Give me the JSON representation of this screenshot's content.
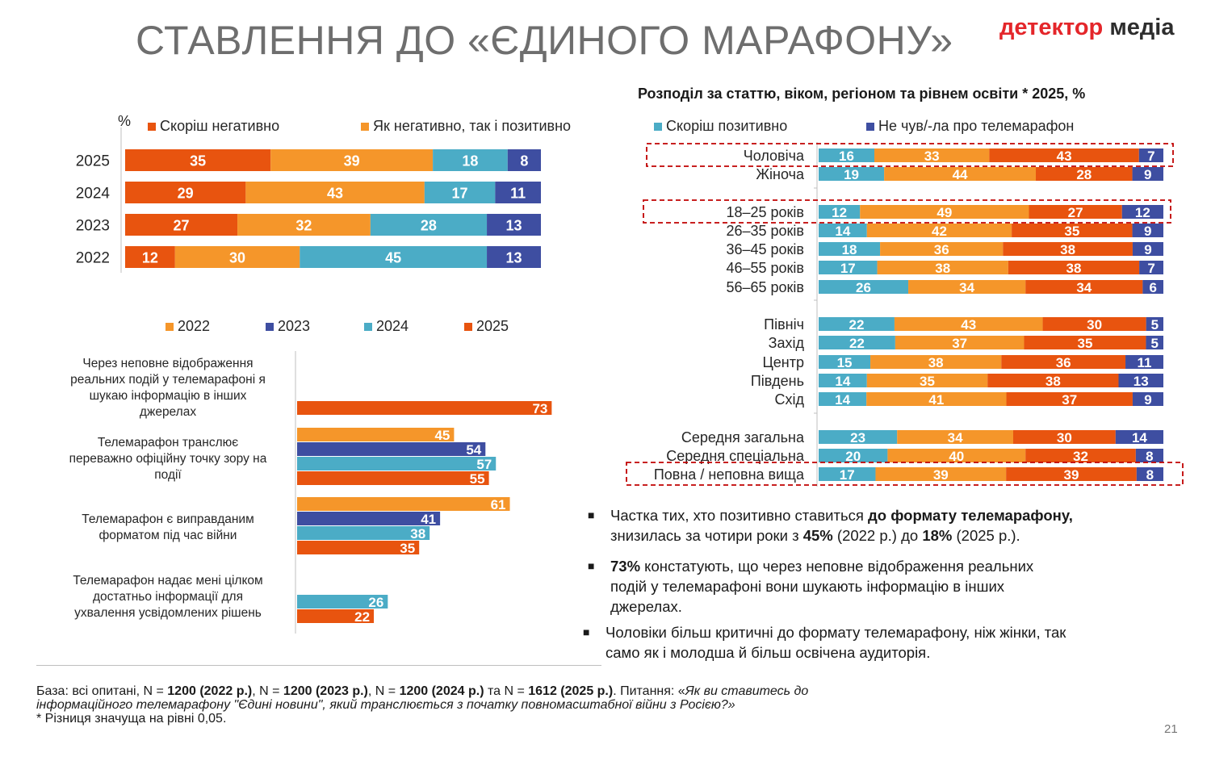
{
  "header": {
    "title": "СТАВЛЕННЯ ДО «ЄДИНОГО МАРАФОНУ»",
    "logo_part1": "детектор",
    "logo_part2": "медіа"
  },
  "colors": {
    "negative": "#e8540f",
    "mixed": "#f5962a",
    "positive": "#4bacc6",
    "not_heard": "#3e4ea1",
    "y2022": "#f5962a",
    "y2023": "#3e4ea1",
    "y2024": "#4bacc6",
    "y2025": "#e8540f",
    "highlight": "#c00000"
  },
  "legend": {
    "percent": "%",
    "negative": "Скоріш негативно",
    "mixed": "Як негативно, так і позитивно",
    "positive": "Скоріш позитивно",
    "not_heard": "Не чув/-ла про телемарафон"
  },
  "right_title": "Розподіл за статтю, віком, регіоном та рівнем освіти * 2025, %",
  "chart_data": [
    {
      "type": "bar",
      "orientation": "horizontal",
      "stacked": true,
      "categories": [
        "2025",
        "2024",
        "2023",
        "2022"
      ],
      "series": [
        {
          "name": "Скоріш негативно",
          "values": [
            35,
            29,
            27,
            12
          ]
        },
        {
          "name": "Як негативно, так і позитивно",
          "values": [
            39,
            43,
            32,
            30
          ]
        },
        {
          "name": "Скоріш позитивно",
          "values": [
            18,
            17,
            28,
            45
          ]
        },
        {
          "name": "Не чув/-ла про телемарафон",
          "values": [
            8,
            11,
            13,
            13
          ]
        }
      ],
      "legend": "top",
      "xlim": [
        0,
        100
      ]
    },
    {
      "type": "bar",
      "orientation": "horizontal",
      "grouped": true,
      "categories": [
        "Через неповне відображення реальних подій у телемарафоні я шукаю інформацію в інших джерелах",
        "Телемарафон транслює переважно офіційну точку зору на події",
        "Телемарафон є виправданим форматом під час війни",
        "Телемарафон надає мені цілком достатньо інформації для ухвалення усвідомлених рішень"
      ],
      "category_lines": [
        [
          "Через неповне відображення",
          "реальних подій у телемарафоні я",
          "шукаю інформацію в інших",
          "джерелах"
        ],
        [
          "Телемарафон транслює",
          "переважно офіційну точку зору на",
          "події"
        ],
        [
          "Телемарафон є виправданим",
          "форматом під час війни"
        ],
        [
          "Телемарафон надає мені цілком",
          "достатньо інформації для",
          "ухвалення усвідомлених рішень"
        ]
      ],
      "series": [
        {
          "name": "2022",
          "values": [
            null,
            45,
            61,
            null
          ]
        },
        {
          "name": "2023",
          "values": [
            null,
            54,
            41,
            null
          ]
        },
        {
          "name": "2024",
          "values": [
            null,
            57,
            38,
            26
          ]
        },
        {
          "name": "2025",
          "values": [
            73,
            55,
            35,
            22
          ]
        }
      ],
      "legend": "top"
    },
    {
      "type": "bar",
      "orientation": "horizontal",
      "stacked": true,
      "categories": [
        "Чоловіча",
        "Жіноча",
        "18–25 років",
        "26–35 років",
        "36–45 років",
        "46–55 років",
        "56–65 років",
        "Північ",
        "Захід",
        "Центр",
        "Південь",
        "Схід",
        "Середня загальна",
        "Середня спеціальна",
        "Повна / неповна вища"
      ],
      "series": [
        {
          "name": "Скоріш позитивно",
          "values": [
            16,
            19,
            12,
            14,
            18,
            17,
            26,
            22,
            22,
            15,
            14,
            14,
            23,
            20,
            17
          ]
        },
        {
          "name": "Як негативно, так і позитивно",
          "values": [
            33,
            44,
            49,
            42,
            36,
            38,
            34,
            43,
            37,
            38,
            35,
            41,
            34,
            40,
            39
          ]
        },
        {
          "name": "Скоріш негативно",
          "values": [
            43,
            28,
            27,
            35,
            38,
            38,
            34,
            30,
            35,
            36,
            38,
            37,
            30,
            32,
            39
          ]
        },
        {
          "name": "Не чув/-ла про телемарафон",
          "values": [
            7,
            9,
            12,
            9,
            9,
            7,
            6,
            5,
            5,
            11,
            13,
            9,
            14,
            8,
            8
          ]
        }
      ],
      "highlighted": [
        "Чоловіча",
        "18–25 років",
        "Повна / неповна вища"
      ],
      "legend": "top"
    }
  ],
  "bullets": [
    {
      "p1": "Частка тих, хто позитивно ставиться ",
      "b1": "до формату телемарафону,",
      "p2": "знизилась за чотири роки з ",
      "b2": "45%",
      "p3": " (2022 р.) до ",
      "b3": "18%",
      "p4": " (2025 р.)."
    },
    {
      "b1": "73%",
      "p1": " констатують, що через неповне відображення реальних",
      "p2": "подій у телемарафоні вони шукають інформацію в інших",
      "p3": "джерелах."
    },
    {
      "p1": "Чоловіки більш критичні до формату телемарафону, ніж жінки, так",
      "p2": "само як і молодша й більш освічена аудиторія."
    }
  ],
  "bullet_marker": "■",
  "footer": {
    "base_label": "База: всі опитані, N = ",
    "n1": "1200 (2022 р.)",
    "sep1": ", N = ",
    "n2": "1200 (2023 р.)",
    "sep2": ", N = ",
    "n3": "1200 (2024 р.)",
    "sep3": " та N = ",
    "n4": "1612 (2025 р.)",
    "question_label": ". Питання: «",
    "question_1": "Як ви ставитесь до",
    "question_2": "інформаційного телемарафону \"Єдині новини\", який транслюється  з початку повномасштабної війни з Росією?»",
    "note": "* Різниця значуща на рівні 0,05."
  },
  "page_number": "21"
}
